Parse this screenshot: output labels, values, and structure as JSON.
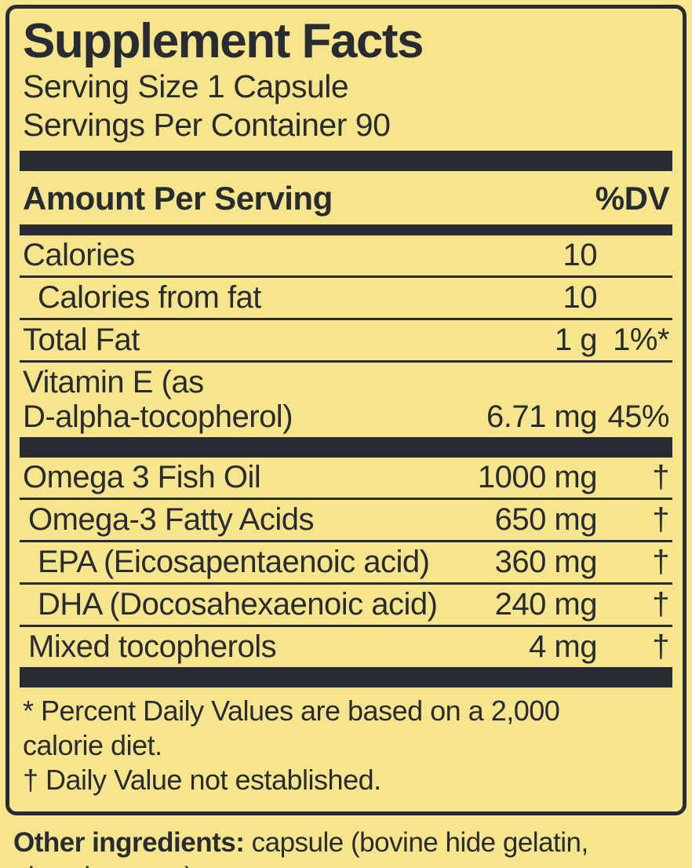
{
  "colors": {
    "background": "#F7E58C",
    "ink": "#272B33"
  },
  "label": {
    "title": "Supplement Facts",
    "serving_size": "Serving Size 1 Capsule",
    "servings_per_container": "Servings Per Container 90",
    "column_headers": {
      "amount": "Amount Per Serving",
      "dv": "%DV"
    },
    "sections": [
      {
        "rows": [
          {
            "name": "Calories",
            "amount": "10",
            "dv": "",
            "indent": 0
          },
          {
            "name": "Calories from fat",
            "amount": "10",
            "dv": "",
            "indent": 2
          },
          {
            "name": "Total Fat",
            "amount": "1 g",
            "dv": "1%*",
            "indent": 0
          },
          {
            "name": "Vitamin E (as\nD-alpha-tocopherol)",
            "amount": "6.71 mg",
            "dv": "45%",
            "indent": 0
          }
        ]
      },
      {
        "rows": [
          {
            "name": "Omega 3 Fish Oil",
            "amount": "1000 mg",
            "dv": "†",
            "indent": 0
          },
          {
            "name": "Omega-3 Fatty Acids",
            "amount": "650 mg",
            "dv": "†",
            "indent": 1
          },
          {
            "name": "EPA (Eicosapentaenoic acid)",
            "amount": "360 mg",
            "dv": "†",
            "indent": 2
          },
          {
            "name": "DHA (Docosahexaenoic acid)",
            "amount": "240 mg",
            "dv": "†",
            "indent": 2
          },
          {
            "name": "Mixed tocopherols",
            "amount": "4 mg",
            "dv": "†",
            "indent": 1
          }
        ]
      }
    ],
    "footnotes": [
      "* Percent Daily Values are based on a 2,000\ncalorie diet.",
      "† Daily Value not established."
    ],
    "other_ingredients_label": "Other ingredients:",
    "other_ingredients_text": " capsule (bovine hide gelatin,\nglycerin, water)."
  }
}
